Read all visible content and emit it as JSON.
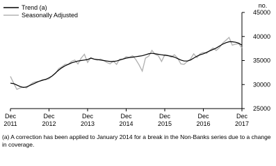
{
  "chart_data": {
    "type": "line",
    "y_axis_label": "no.",
    "categories": [
      "Dec 2011",
      null,
      null,
      null,
      null,
      null,
      null,
      null,
      null,
      null,
      null,
      null,
      "Dec 2012",
      null,
      null,
      null,
      null,
      null,
      null,
      null,
      null,
      null,
      null,
      null,
      "Dec 2013",
      null,
      null,
      null,
      null,
      null,
      null,
      null,
      null,
      null,
      null,
      null,
      "Dec 2014",
      null,
      null,
      null,
      null,
      null,
      null,
      null,
      null,
      null,
      null,
      null,
      "Dec 2015",
      null,
      null,
      null,
      null,
      null,
      null,
      null,
      null,
      null,
      null,
      null,
      "Dec 2016",
      null,
      null,
      null,
      null,
      null,
      null,
      null,
      null,
      null,
      null,
      null,
      "Dec 2017"
    ],
    "series": [
      {
        "name": "Trend (a)",
        "color": "#000000",
        "values": [
          30300,
          30200,
          29900,
          29600,
          29400,
          29500,
          29800,
          30100,
          30400,
          30700,
          30900,
          31100,
          31400,
          31800,
          32400,
          33000,
          33500,
          33900,
          34200,
          34500,
          34700,
          34900,
          35000,
          35100,
          35200,
          35500,
          35300,
          35200,
          35100,
          35000,
          34900,
          34800,
          34800,
          34900,
          35100,
          35300,
          35500,
          35600,
          35700,
          35800,
          35900,
          36000,
          36200,
          36400,
          36500,
          36400,
          36300,
          36200,
          36100,
          36000,
          35900,
          35700,
          35400,
          35100,
          34900,
          34900,
          35100,
          35500,
          35900,
          36200,
          36400,
          36700,
          37000,
          37300,
          37600,
          38000,
          38400,
          38700,
          38900,
          38900,
          38800,
          38600,
          38200
        ]
      },
      {
        "name": "Seasonally Adjusted",
        "color": "#b3b3b3",
        "values": [
          31700,
          30300,
          29000,
          29300,
          29500,
          29300,
          29900,
          30400,
          30600,
          30700,
          31000,
          31000,
          31200,
          31800,
          32300,
          33300,
          33700,
          34200,
          34200,
          34800,
          35100,
          34300,
          35500,
          36300,
          34600,
          35600,
          35300,
          35100,
          35300,
          35000,
          34600,
          34300,
          34900,
          34200,
          35300,
          35300,
          35800,
          35700,
          36000,
          35200,
          34100,
          32800,
          35500,
          35900,
          37100,
          36300,
          36000,
          34800,
          36200,
          36100,
          35700,
          36200,
          35500,
          34300,
          34200,
          34800,
          35300,
          36400,
          35600,
          36400,
          36700,
          36500,
          37100,
          37600,
          37100,
          37700,
          38600,
          39200,
          39800,
          38200,
          38400,
          38500,
          37600
        ]
      }
    ],
    "ylim": [
      25000,
      45000
    ],
    "yticks": [
      25000,
      30000,
      35000,
      40000,
      45000
    ],
    "footnote": "(a) A correction has been applied to January 2014 for a break in the Non-Banks series due to a change in coverage."
  }
}
